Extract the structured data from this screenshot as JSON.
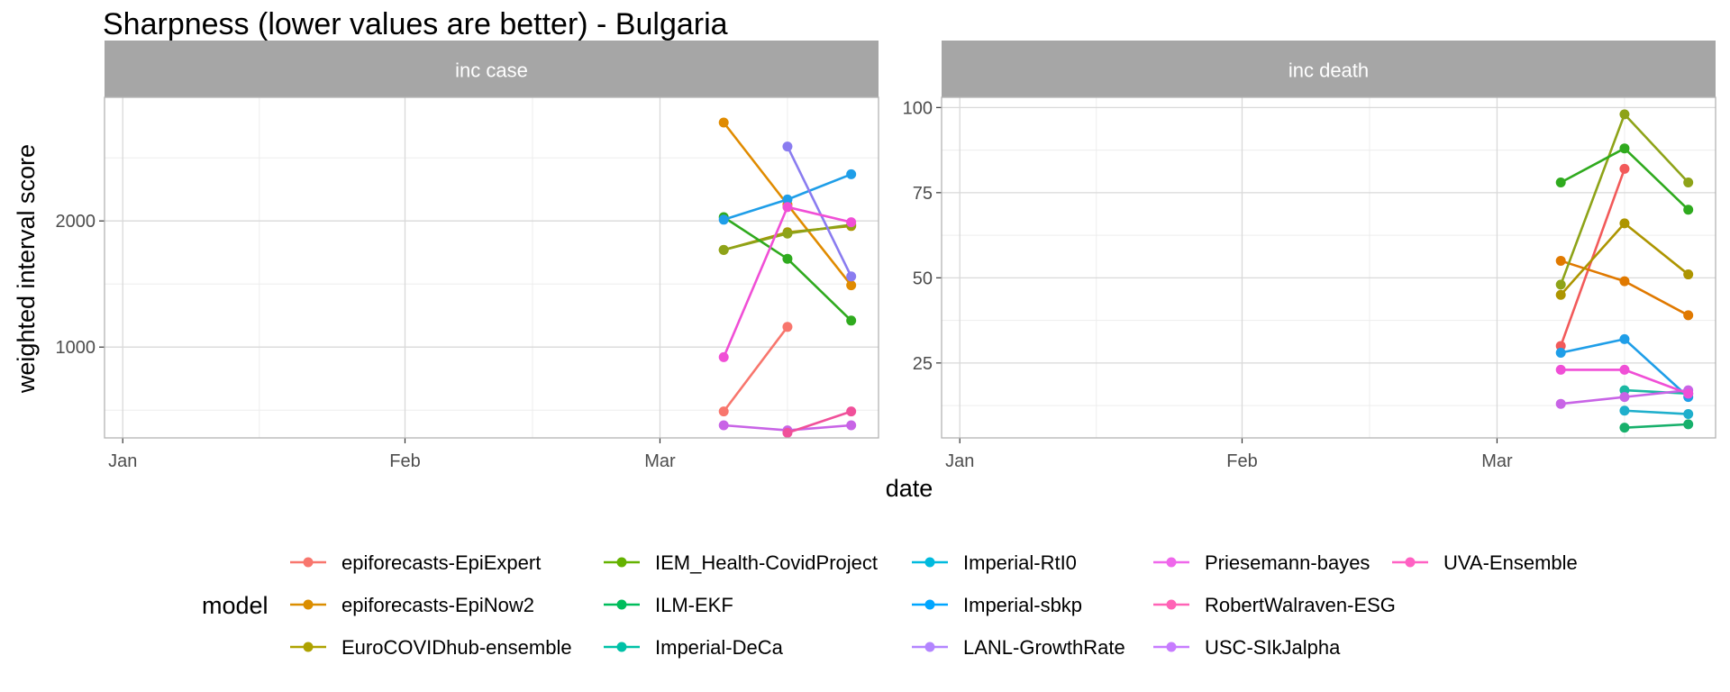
{
  "chart_data": {
    "type": "line",
    "title": "Sharpness (lower values are better) - Bulgaria",
    "xlabel": "date",
    "ylabel": "weighted interval score",
    "x_ticks": [
      "Jan",
      "Feb",
      "Mar"
    ],
    "x_dates": [
      "2021-03-08",
      "2021-03-15",
      "2021-03-22"
    ],
    "legend": {
      "title": "model",
      "position": "bottom"
    },
    "models": [
      {
        "name": "epiforecasts-EpiExpert",
        "color": "#F8766D"
      },
      {
        "name": "epiforecasts-EpiNow2",
        "color": "#DB8E00"
      },
      {
        "name": "EuroCOVIDhub-ensemble",
        "color": "#AEA200"
      },
      {
        "name": "IEM_Health-CovidProject",
        "color": "#64B200"
      },
      {
        "name": "ILM-EKF",
        "color": "#00BD5C"
      },
      {
        "name": "Imperial-DeCa",
        "color": "#00C1A7"
      },
      {
        "name": "Imperial-RtI0",
        "color": "#00BADE"
      },
      {
        "name": "Imperial-sbkp",
        "color": "#00A6FF"
      },
      {
        "name": "LANL-GrowthRate",
        "color": "#B385FF"
      },
      {
        "name": "Priesemann-bayes",
        "color": "#EF67EB"
      },
      {
        "name": "RobertWalraven-ESG",
        "color": "#FF63B6"
      },
      {
        "name": "USC-SIkJalpha",
        "color": "#C77CFF"
      },
      {
        "name": "UVA-Ensemble",
        "color": "#FF61C3"
      }
    ],
    "panels": [
      {
        "label": "inc case",
        "ylim": [
          280,
          2980
        ],
        "y_ticks": [
          1000,
          2000
        ],
        "series": [
          {
            "model": "epiforecasts-EpiExpert",
            "color": "#F8766D",
            "y": [
              490,
              1160,
              null
            ]
          },
          {
            "model": "epiforecasts-EpiNow2",
            "color": "#E08B00",
            "y": [
              2780,
              2130,
              1490
            ]
          },
          {
            "model": "EuroCOVIDhub-ensemble",
            "color": "#AD9500",
            "y": [
              1770,
              1910,
              1960
            ]
          },
          {
            "model": "IEM_Health-CovidProject",
            "color": "#8EA318",
            "y": [
              1770,
              1900,
              1970
            ]
          },
          {
            "model": "ILM-EKF",
            "color": "#2FAA1E",
            "y": [
              2030,
              1700,
              1210
            ]
          },
          {
            "model": "LANL-GrowthRate",
            "color": "#1F9EE8",
            "y": [
              2010,
              2170,
              2370
            ]
          },
          {
            "model": "Priesemann-bayes",
            "color": "#8A7CF0",
            "y": [
              null,
              2590,
              1560
            ]
          },
          {
            "model": "RobertWalraven-ESG",
            "color": "#C864E6",
            "y": [
              380,
              340,
              380
            ]
          },
          {
            "model": "USC-SIkJalpha",
            "color": "#F04FD6",
            "y": [
              920,
              2110,
              1990
            ]
          },
          {
            "model": "UVA-Ensemble",
            "color": "#F0509A",
            "y": [
              null,
              320,
              490
            ]
          }
        ]
      },
      {
        "label": "inc death",
        "ylim": [
          3,
          103
        ],
        "y_ticks": [
          25,
          50,
          75,
          100
        ],
        "series": [
          {
            "model": "epiforecasts-EpiExpert",
            "color": "#F25A5A",
            "y": [
              30,
              82,
              null
            ]
          },
          {
            "model": "epiforecasts-EpiNow2",
            "color": "#E07900",
            "y": [
              55,
              49,
              39
            ]
          },
          {
            "model": "EuroCOVIDhub-ensemble",
            "color": "#AD9500",
            "y": [
              45,
              66,
              51
            ]
          },
          {
            "model": "IEM_Health-CovidProject",
            "color": "#8EA318",
            "y": [
              48,
              98,
              78
            ]
          },
          {
            "model": "ILM-EKF",
            "color": "#2FAA1E",
            "y": [
              78,
              88,
              70
            ]
          },
          {
            "model": "Imperial-DeCa",
            "color": "#17B06B",
            "y": [
              null,
              6,
              7
            ]
          },
          {
            "model": "Imperial-RtI0",
            "color": "#1BB8A3",
            "y": [
              null,
              17,
              16
            ]
          },
          {
            "model": "Imperial-sbkp",
            "color": "#1FAFCC",
            "y": [
              null,
              11,
              10
            ]
          },
          {
            "model": "LANL-GrowthRate",
            "color": "#1F9EE8",
            "y": [
              28,
              32,
              15
            ]
          },
          {
            "model": "RobertWalraven-ESG",
            "color": "#C864E6",
            "y": [
              13,
              15,
              17
            ]
          },
          {
            "model": "USC-SIkJalpha",
            "color": "#F04FD6",
            "y": [
              23,
              23,
              16
            ]
          }
        ]
      }
    ]
  }
}
